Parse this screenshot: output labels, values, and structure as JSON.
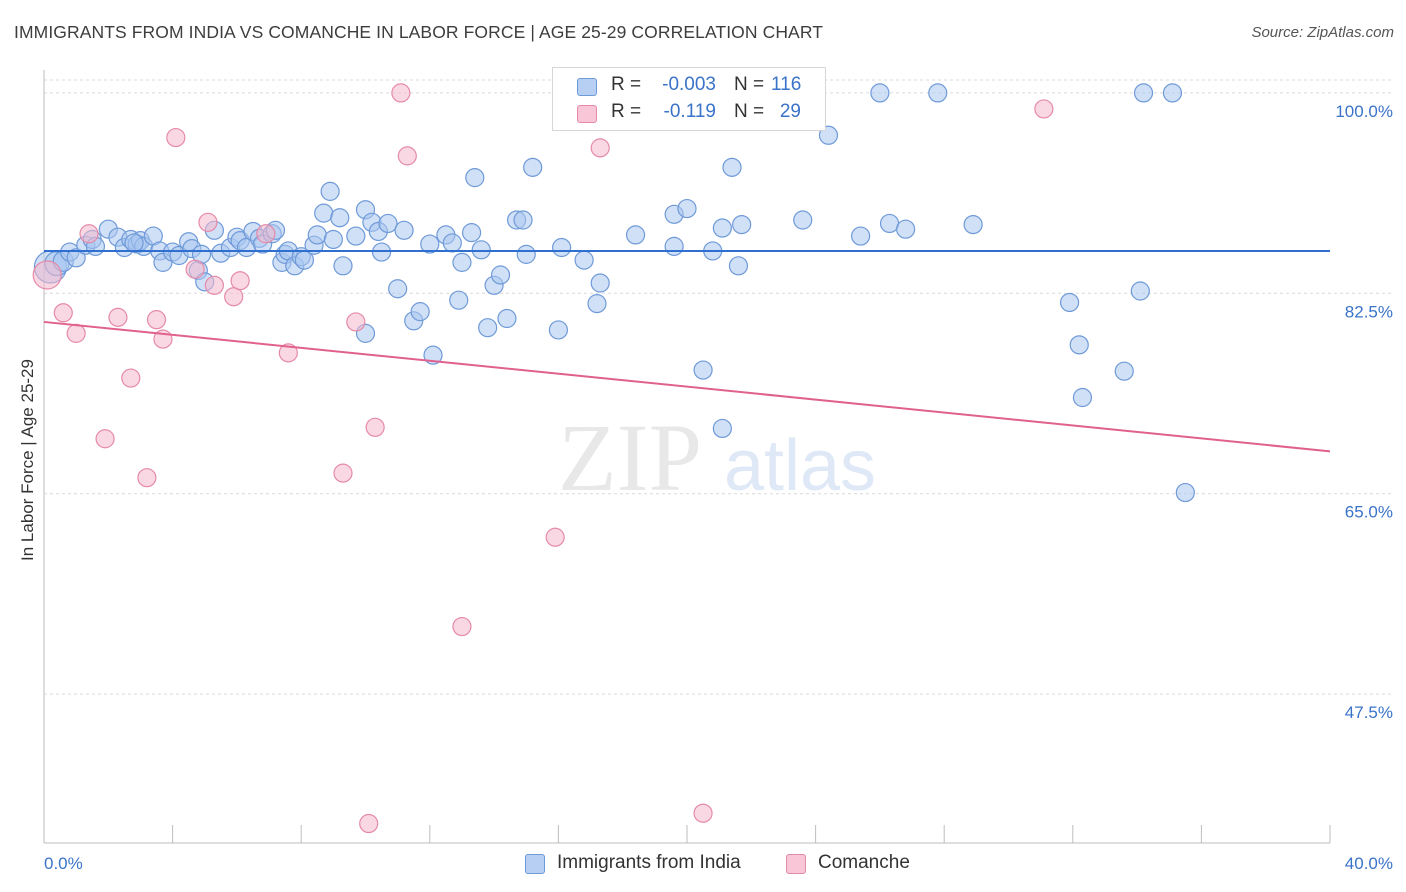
{
  "title": "IMMIGRANTS FROM INDIA VS COMANCHE IN LABOR FORCE | AGE 25-29 CORRELATION CHART",
  "source": "Source: ZipAtlas.com",
  "watermark": {
    "zip": "ZIP",
    "atlas": "atlas"
  },
  "legend": {
    "r_label": "R =",
    "n_label": "N =",
    "india": {
      "r": "-0.003",
      "n": "116"
    },
    "comanche": {
      "r": "-0.119",
      "n": "29"
    }
  },
  "colors": {
    "india_fill": "#a9c6f0",
    "india_stroke": "#6f9ad8",
    "india_line": "#2f6fcf",
    "comanche_fill": "#f5b8cc",
    "comanche_stroke": "#e58aa8",
    "comanche_line": "#e0608e",
    "tick_label": "#3a73c8",
    "grid": "#d9d9d9"
  },
  "chart_data": {
    "type": "scatter",
    "title": "IMMIGRANTS FROM INDIA VS COMANCHE IN LABOR FORCE | AGE 25-29 CORRELATION CHART",
    "xlabel": "",
    "ylabel": "In Labor Force | Age 25-29",
    "xlim": [
      0,
      40
    ],
    "ylim": [
      34.5,
      102
    ],
    "x_tick_labels": [
      "0.0%",
      "40.0%"
    ],
    "y_ticks": [
      {
        "value": 100.0,
        "label": "100.0%"
      },
      {
        "value": 82.5,
        "label": "82.5%"
      },
      {
        "value": 65.0,
        "label": "65.0%"
      },
      {
        "value": 47.5,
        "label": "47.5%"
      }
    ],
    "grid": "horizontal dashed",
    "legend_position": "top-center",
    "series": [
      {
        "name": "Immigrants from India",
        "trend": [
          [
            0,
            86.2
          ],
          [
            40,
            86.2
          ]
        ],
        "points": [
          [
            0.2,
            84.8,
            16
          ],
          [
            0.4,
            85.1,
            12
          ],
          [
            0.6,
            85.3,
            10
          ],
          [
            0.8,
            86.1,
            9
          ],
          [
            1.0,
            85.6,
            9
          ],
          [
            1.3,
            86.7,
            9
          ],
          [
            1.5,
            87.2,
            9
          ],
          [
            1.6,
            86.6,
            9
          ],
          [
            2.0,
            88.1,
            9
          ],
          [
            2.3,
            87.4,
            9
          ],
          [
            2.5,
            86.5,
            9
          ],
          [
            2.7,
            87.2,
            9
          ],
          [
            2.9,
            86.8,
            9
          ],
          [
            3.0,
            87.1,
            9
          ],
          [
            3.1,
            86.6,
            9
          ],
          [
            3.4,
            87.5,
            9
          ],
          [
            3.6,
            86.2,
            9
          ],
          [
            3.7,
            85.2,
            9
          ],
          [
            4.0,
            86.1,
            9
          ],
          [
            4.2,
            85.8,
            9
          ],
          [
            4.5,
            87.0,
            9
          ],
          [
            4.6,
            86.4,
            9
          ],
          [
            4.8,
            84.5,
            9
          ],
          [
            4.9,
            85.9,
            9
          ],
          [
            5.0,
            83.5,
            9
          ],
          [
            5.3,
            88.0,
            9
          ],
          [
            5.5,
            86.0,
            9
          ],
          [
            5.8,
            86.5,
            9
          ],
          [
            6.0,
            87.4,
            9
          ],
          [
            6.1,
            87.1,
            9
          ],
          [
            6.3,
            86.5,
            9
          ],
          [
            6.5,
            87.9,
            9
          ],
          [
            6.7,
            87.3,
            9
          ],
          [
            6.8,
            86.8,
            9
          ],
          [
            7.1,
            87.7,
            9
          ],
          [
            7.2,
            88.0,
            9
          ],
          [
            7.4,
            85.2,
            9
          ],
          [
            7.5,
            85.9,
            9
          ],
          [
            7.6,
            86.2,
            9
          ],
          [
            7.8,
            84.9,
            9
          ],
          [
            8.0,
            85.7,
            9
          ],
          [
            8.1,
            85.4,
            9
          ],
          [
            8.4,
            86.7,
            9
          ],
          [
            8.5,
            87.6,
            9
          ],
          [
            8.7,
            89.5,
            9
          ],
          [
            8.9,
            91.4,
            9
          ],
          [
            9.0,
            87.2,
            9
          ],
          [
            9.2,
            89.1,
            9
          ],
          [
            9.3,
            84.9,
            9
          ],
          [
            9.7,
            87.5,
            9
          ],
          [
            10.0,
            89.8,
            9
          ],
          [
            10.2,
            88.7,
            9
          ],
          [
            10.4,
            87.9,
            9
          ],
          [
            10.0,
            79.0,
            9
          ],
          [
            10.5,
            86.1,
            9
          ],
          [
            10.7,
            88.6,
            9
          ],
          [
            11.0,
            82.9,
            9
          ],
          [
            11.2,
            88.0,
            9
          ],
          [
            11.5,
            80.1,
            9
          ],
          [
            11.7,
            80.9,
            9
          ],
          [
            12.0,
            86.8,
            9
          ],
          [
            12.1,
            77.1,
            9
          ],
          [
            12.5,
            87.6,
            9
          ],
          [
            12.7,
            86.9,
            9
          ],
          [
            12.9,
            81.9,
            9
          ],
          [
            13.0,
            85.2,
            9
          ],
          [
            13.3,
            87.8,
            9
          ],
          [
            13.4,
            92.6,
            9
          ],
          [
            13.6,
            86.3,
            9
          ],
          [
            13.8,
            79.5,
            9
          ],
          [
            14.0,
            83.2,
            9
          ],
          [
            14.2,
            84.1,
            9
          ],
          [
            14.4,
            80.3,
            9
          ],
          [
            14.7,
            88.9,
            9
          ],
          [
            14.9,
            88.9,
            9
          ],
          [
            15.0,
            85.9,
            9
          ],
          [
            15.2,
            93.5,
            9
          ],
          [
            16.0,
            79.3,
            9
          ],
          [
            16.1,
            86.5,
            9
          ],
          [
            16.8,
            85.4,
            9
          ],
          [
            17.2,
            81.6,
            9
          ],
          [
            17.3,
            83.4,
            9
          ],
          [
            18.4,
            87.6,
            9
          ],
          [
            19.6,
            86.6,
            9
          ],
          [
            19.6,
            89.4,
            9
          ],
          [
            20.0,
            89.9,
            9
          ],
          [
            20.5,
            75.8,
            9
          ],
          [
            20.8,
            86.2,
            9
          ],
          [
            21.1,
            88.2,
            9
          ],
          [
            21.1,
            70.7,
            9
          ],
          [
            21.4,
            93.5,
            9
          ],
          [
            21.6,
            84.9,
            9
          ],
          [
            21.7,
            88.5,
            9
          ],
          [
            23.6,
            88.9,
            9
          ],
          [
            24.4,
            96.3,
            9
          ],
          [
            25.4,
            87.5,
            9
          ],
          [
            26.0,
            100.0,
            9
          ],
          [
            26.3,
            88.6,
            9
          ],
          [
            26.8,
            88.1,
            9
          ],
          [
            27.8,
            100.0,
            9
          ],
          [
            28.9,
            88.5,
            9
          ],
          [
            31.9,
            81.7,
            9
          ],
          [
            32.2,
            78.0,
            9
          ],
          [
            32.3,
            73.4,
            9
          ],
          [
            33.6,
            75.7,
            9
          ],
          [
            34.1,
            82.7,
            9
          ],
          [
            34.2,
            100.0,
            9
          ],
          [
            35.1,
            100.0,
            9
          ],
          [
            35.5,
            65.1,
            9
          ],
          [
            2.8,
            86.9,
            9
          ]
        ]
      },
      {
        "name": "Comanche",
        "trend": [
          [
            0,
            80.0
          ],
          [
            40,
            68.7
          ]
        ],
        "points": [
          [
            0.1,
            84.1,
            14
          ],
          [
            0.6,
            80.8,
            9
          ],
          [
            1.0,
            79.0,
            9
          ],
          [
            1.4,
            87.7,
            9
          ],
          [
            1.9,
            69.8,
            9
          ],
          [
            2.3,
            80.4,
            9
          ],
          [
            2.7,
            75.1,
            9
          ],
          [
            3.2,
            66.4,
            9
          ],
          [
            3.5,
            80.2,
            9
          ],
          [
            3.7,
            78.5,
            9
          ],
          [
            4.1,
            96.1,
            9
          ],
          [
            4.7,
            84.6,
            9
          ],
          [
            5.1,
            88.7,
            9
          ],
          [
            5.3,
            83.2,
            9
          ],
          [
            5.9,
            82.2,
            9
          ],
          [
            6.1,
            83.6,
            9
          ],
          [
            6.9,
            87.7,
            9
          ],
          [
            7.6,
            77.3,
            9
          ],
          [
            9.3,
            66.8,
            9
          ],
          [
            9.7,
            80.0,
            9
          ],
          [
            10.1,
            36.2,
            9
          ],
          [
            10.3,
            70.8,
            9
          ],
          [
            11.1,
            100.0,
            9
          ],
          [
            11.3,
            94.5,
            9
          ],
          [
            13.0,
            53.4,
            9
          ],
          [
            15.9,
            61.2,
            9
          ],
          [
            17.3,
            95.2,
            9
          ],
          [
            20.5,
            37.1,
            9
          ],
          [
            31.1,
            98.6,
            9
          ]
        ]
      }
    ]
  },
  "bottom_legend": {
    "india": "Immigrants from India",
    "comanche": "Comanche"
  }
}
